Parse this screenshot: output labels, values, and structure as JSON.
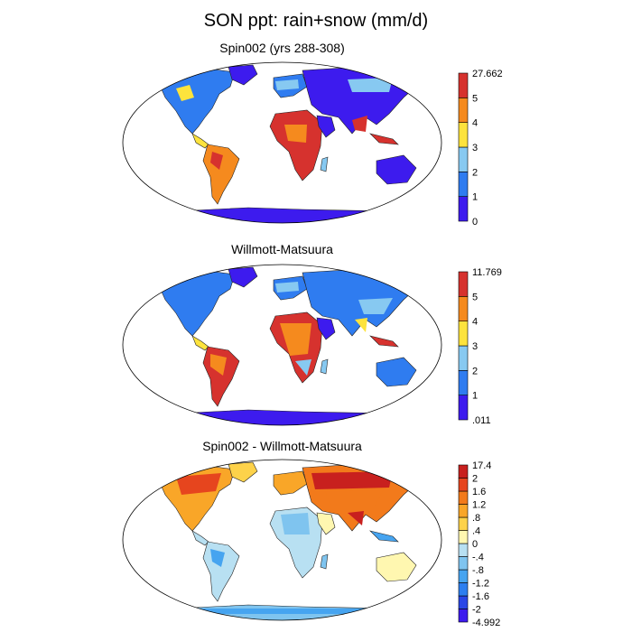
{
  "title": "SON ppt: rain+snow (mm/d)",
  "panels": [
    {
      "title": "Spin002 (yrs 288-308)",
      "colorbar": {
        "labels": [
          "0",
          "1",
          "2",
          "3",
          "4",
          "5",
          "27.662"
        ],
        "colors": [
          "#3d1bee",
          "#2f7cf0",
          "#87c9f1",
          "#fde33d",
          "#f58a1e",
          "#d6322e"
        ]
      }
    },
    {
      "title": "Willmott-Matsuura",
      "colorbar": {
        "labels": [
          ".011",
          "1",
          "2",
          "3",
          "4",
          "5",
          "11.769"
        ],
        "colors": [
          "#3d1bee",
          "#2f7cf0",
          "#87c9f1",
          "#fde33d",
          "#f58a1e",
          "#d6322e"
        ]
      }
    },
    {
      "title": "Spin002 - Willmott-Matsuura",
      "colorbar": {
        "labels": [
          "-4.992",
          "-2",
          "-1.6",
          "-1.2",
          "-.8",
          "-.4",
          "0",
          ".4",
          ".8",
          "1.2",
          "1.6",
          "2",
          "17.4"
        ],
        "colors": [
          "#3d1bee",
          "#2a46e6",
          "#2d7ff0",
          "#46a4f0",
          "#7fc4ef",
          "#b8e0f2",
          "#fff7b0",
          "#fdd24a",
          "#f9a628",
          "#f27a1b",
          "#e6451e",
          "#c8201e"
        ]
      }
    }
  ]
}
